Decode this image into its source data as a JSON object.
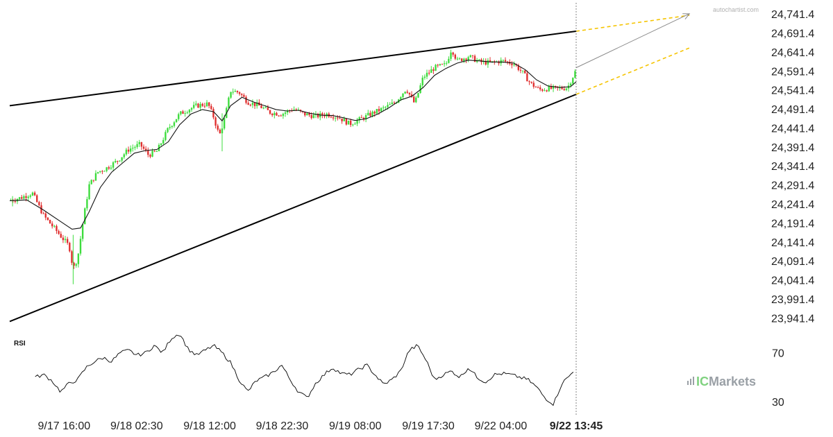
{
  "chart_data": {
    "type": "candlestick",
    "title": "",
    "watermark": "autochartist.com",
    "brand": {
      "prefix": "IC",
      "suffix": "Markets"
    },
    "y_ticks": [
      "24,741.4",
      "24,691.4",
      "24,641.4",
      "24,591.4",
      "24,541.4",
      "24,491.4",
      "24,441.4",
      "24,391.4",
      "24,341.4",
      "24,291.4",
      "24,241.4",
      "24,191.4",
      "24,141.4",
      "24,091.4",
      "24,041.4",
      "23,991.4",
      "23,941.4"
    ],
    "ylim": [
      23920,
      24760
    ],
    "x_ticks": [
      "9/17 16:00",
      "9/18 02:30",
      "9/18 12:00",
      "9/18 22:30",
      "9/19 08:00",
      "9/19 17:30",
      "9/22 04:00"
    ],
    "x_last": "9/22 13:45",
    "x_range": [
      0,
      100
    ],
    "x_tick_pos": [
      9.6,
      22.4,
      35.3,
      48.1,
      61.0,
      73.9,
      86.7
    ],
    "x_last_pos": 100,
    "price_keypoints": [
      [
        0,
        24250
      ],
      [
        2,
        24258
      ],
      [
        4,
        24270
      ],
      [
        6,
        24210
      ],
      [
        8,
        24175
      ],
      [
        9.5,
        24148
      ],
      [
        10.5,
        24130
      ],
      [
        11.2,
        24070
      ],
      [
        12,
        24100
      ],
      [
        13,
        24200
      ],
      [
        14,
        24290
      ],
      [
        15.5,
        24325
      ],
      [
        17,
        24335
      ],
      [
        19,
        24355
      ],
      [
        21,
        24385
      ],
      [
        23,
        24398
      ],
      [
        24.5,
        24370
      ],
      [
        26,
        24380
      ],
      [
        28,
        24440
      ],
      [
        30,
        24478
      ],
      [
        31.5,
        24490
      ],
      [
        33,
        24500
      ],
      [
        35,
        24505
      ],
      [
        36,
        24470
      ],
      [
        37,
        24420
      ],
      [
        38,
        24470
      ],
      [
        39,
        24540
      ],
      [
        40.5,
        24535
      ],
      [
        42,
        24510
      ],
      [
        44,
        24500
      ],
      [
        46,
        24482
      ],
      [
        48,
        24478
      ],
      [
        50,
        24492
      ],
      [
        52,
        24478
      ],
      [
        54,
        24472
      ],
      [
        56,
        24478
      ],
      [
        58,
        24470
      ],
      [
        60,
        24452
      ],
      [
        62,
        24465
      ],
      [
        64,
        24480
      ],
      [
        66,
        24493
      ],
      [
        68,
        24508
      ],
      [
        70,
        24545
      ],
      [
        71.5,
        24505
      ],
      [
        73,
        24575
      ],
      [
        75,
        24600
      ],
      [
        77,
        24608
      ],
      [
        78,
        24650
      ],
      [
        79,
        24618
      ],
      [
        81,
        24630
      ],
      [
        83,
        24615
      ],
      [
        85,
        24613
      ],
      [
        87,
        24618
      ],
      [
        89,
        24611
      ],
      [
        90.5,
        24588
      ],
      [
        92,
        24558
      ],
      [
        93.5,
        24542
      ],
      [
        95,
        24545
      ],
      [
        97,
        24545
      ],
      [
        98.5,
        24548
      ],
      [
        100,
        24595
      ]
    ],
    "ma_keypoints": [
      [
        0,
        24250
      ],
      [
        3,
        24252
      ],
      [
        6,
        24225
      ],
      [
        9,
        24195
      ],
      [
        11,
        24175
      ],
      [
        12.5,
        24178
      ],
      [
        14,
        24220
      ],
      [
        16,
        24285
      ],
      [
        18,
        24325
      ],
      [
        20,
        24350
      ],
      [
        22,
        24375
      ],
      [
        24,
        24382
      ],
      [
        26,
        24385
      ],
      [
        28,
        24405
      ],
      [
        30,
        24450
      ],
      [
        32,
        24478
      ],
      [
        34,
        24490
      ],
      [
        36,
        24484
      ],
      [
        37.5,
        24460
      ],
      [
        39,
        24500
      ],
      [
        41,
        24522
      ],
      [
        43,
        24510
      ],
      [
        45,
        24500
      ],
      [
        47,
        24490
      ],
      [
        49,
        24486
      ],
      [
        51,
        24488
      ],
      [
        53,
        24480
      ],
      [
        55,
        24475
      ],
      [
        57,
        24474
      ],
      [
        59,
        24468
      ],
      [
        61,
        24461
      ],
      [
        63,
        24466
      ],
      [
        65,
        24478
      ],
      [
        67,
        24495
      ],
      [
        69,
        24515
      ],
      [
        71,
        24525
      ],
      [
        73,
        24548
      ],
      [
        75,
        24580
      ],
      [
        77,
        24598
      ],
      [
        79,
        24612
      ],
      [
        81,
        24620
      ],
      [
        83,
        24618
      ],
      [
        85,
        24615
      ],
      [
        87,
        24615
      ],
      [
        89,
        24612
      ],
      [
        91,
        24595
      ],
      [
        93,
        24568
      ],
      [
        95,
        24552
      ],
      [
        97,
        24548
      ],
      [
        99,
        24550
      ],
      [
        100,
        24563
      ]
    ],
    "wedge_upper": [
      [
        0,
        24500
      ],
      [
        100,
        24696
      ]
    ],
    "wedge_lower": [
      [
        0,
        23932
      ],
      [
        100,
        24530
      ]
    ],
    "projection_upper": [
      [
        100,
        24696
      ],
      [
        120,
        24738
      ]
    ],
    "projection_lower": [
      [
        100,
        24530
      ],
      [
        120,
        24652
      ]
    ],
    "forecast_arrow": [
      [
        100,
        24600
      ],
      [
        120,
        24742
      ]
    ],
    "rsi": {
      "label": "RSI",
      "ticks": [
        "70",
        "30"
      ],
      "tick_values": [
        70,
        30
      ],
      "ylim": [
        18,
        92
      ],
      "keypoints": [
        [
          0,
          50
        ],
        [
          1.5,
          52
        ],
        [
          3,
          47
        ],
        [
          4.5,
          38
        ],
        [
          6,
          45
        ],
        [
          7.5,
          48
        ],
        [
          9,
          58
        ],
        [
          10.5,
          63
        ],
        [
          12,
          66
        ],
        [
          13.5,
          63
        ],
        [
          15,
          70
        ],
        [
          16.5,
          72
        ],
        [
          18,
          68
        ],
        [
          19.5,
          70
        ],
        [
          21,
          76
        ],
        [
          22.5,
          70
        ],
        [
          24,
          82
        ],
        [
          25.5,
          86
        ],
        [
          27,
          73
        ],
        [
          28.5,
          68
        ],
        [
          30,
          72
        ],
        [
          31.5,
          76
        ],
        [
          33,
          70
        ],
        [
          34.5,
          62
        ],
        [
          36,
          48
        ],
        [
          37.5,
          38
        ],
        [
          39,
          47
        ],
        [
          40.5,
          50
        ],
        [
          42,
          54
        ],
        [
          43.5,
          60
        ],
        [
          45,
          48
        ],
        [
          46.5,
          38
        ],
        [
          48,
          33
        ],
        [
          49.5,
          45
        ],
        [
          51,
          52
        ],
        [
          52.5,
          58
        ],
        [
          54,
          53
        ],
        [
          55.5,
          52
        ],
        [
          57,
          56
        ],
        [
          58.5,
          60
        ],
        [
          60,
          52
        ],
        [
          61.5,
          44
        ],
        [
          63,
          48
        ],
        [
          64.5,
          55
        ],
        [
          66,
          72
        ],
        [
          67.5,
          76
        ],
        [
          69,
          64
        ],
        [
          70.5,
          48
        ],
        [
          72,
          52
        ],
        [
          73.5,
          55
        ],
        [
          75,
          50
        ],
        [
          76.5,
          58
        ],
        [
          78,
          50
        ],
        [
          79.5,
          46
        ],
        [
          81,
          52
        ],
        [
          82.5,
          53
        ],
        [
          84,
          52
        ],
        [
          85.5,
          50
        ],
        [
          87,
          48
        ],
        [
          88.5,
          42
        ],
        [
          90,
          33
        ],
        [
          91.5,
          28
        ],
        [
          93,
          45
        ],
        [
          94.5,
          52
        ],
        [
          96,
          62
        ],
        [
          97.5,
          57
        ],
        [
          99,
          68
        ],
        [
          100,
          73
        ]
      ]
    },
    "colors": {
      "bull": "#3ddc3d",
      "bear": "#e03030",
      "wedge": "#000000",
      "moving_average": "#111111",
      "projection": "#f5c400",
      "forecast": "#8a8a8a",
      "rsi_line": "#000000",
      "current_time_line": "#666666"
    }
  }
}
